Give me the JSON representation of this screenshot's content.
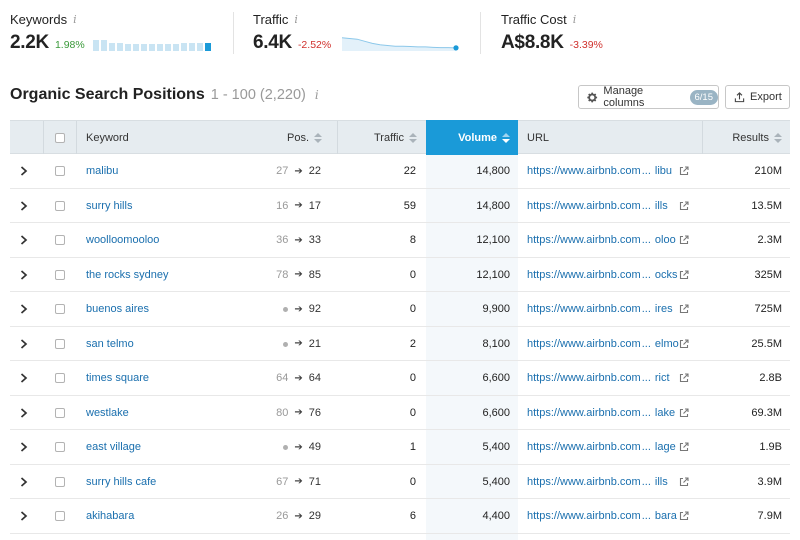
{
  "metrics": {
    "keywords": {
      "label": "Keywords",
      "info": "i",
      "value": "2.2K",
      "delta": "1.98%",
      "trend": [
        0.85,
        0.85,
        0.6,
        0.6,
        0.55,
        0.5,
        0.5,
        0.5,
        0.55,
        0.55,
        0.55,
        0.6,
        0.6,
        0.6,
        0.6
      ]
    },
    "traffic": {
      "label": "Traffic",
      "info": "i",
      "value": "6.4K",
      "delta": "-2.52%",
      "trend": [
        0.8,
        0.75,
        0.7,
        0.55,
        0.4,
        0.3,
        0.25,
        0.2,
        0.2,
        0.18,
        0.15,
        0.15,
        0.12,
        0.1,
        0.1,
        0.08
      ]
    },
    "traffic_cost": {
      "label": "Traffic Cost",
      "info": "i",
      "value": "A$8.8K",
      "delta": "-3.39%"
    }
  },
  "heading": {
    "title": "Organic Search Positions",
    "range": "1 - 100 (2,220)",
    "info": "i"
  },
  "toolbar": {
    "manage_label": "Manage columns",
    "manage_badge": "6/15",
    "export_label": "Export"
  },
  "columns": {
    "keyword": "Keyword",
    "pos": "Pos.",
    "traffic": "Traffic",
    "volume": "Volume",
    "url": "URL",
    "results": "Results"
  },
  "rows": [
    {
      "keyword": "malibu",
      "prev": "27",
      "prev_dot": false,
      "pos": "22",
      "traffic": "22",
      "volume": "14,800",
      "url": "https://www.airbnb.com",
      "url_tail": "libu",
      "results": "210M"
    },
    {
      "keyword": "surry hills",
      "prev": "16",
      "prev_dot": false,
      "pos": "17",
      "traffic": "59",
      "volume": "14,800",
      "url": "https://www.airbnb.com",
      "url_tail": "ills",
      "results": "13.5M"
    },
    {
      "keyword": "woolloomooloo",
      "prev": "36",
      "prev_dot": false,
      "pos": "33",
      "traffic": "8",
      "volume": "12,100",
      "url": "https://www.airbnb.com",
      "url_tail": "oloo",
      "results": "2.3M"
    },
    {
      "keyword": "the rocks sydney",
      "prev": "78",
      "prev_dot": false,
      "pos": "85",
      "traffic": "0",
      "volume": "12,100",
      "url": "https://www.airbnb.com",
      "url_tail": "ocks",
      "results": "325M"
    },
    {
      "keyword": "buenos aires",
      "prev": "",
      "prev_dot": true,
      "pos": "92",
      "traffic": "0",
      "volume": "9,900",
      "url": "https://www.airbnb.com",
      "url_tail": "ires",
      "results": "725M"
    },
    {
      "keyword": "san telmo",
      "prev": "",
      "prev_dot": true,
      "pos": "21",
      "traffic": "2",
      "volume": "8,100",
      "url": "https://www.airbnb.com",
      "url_tail": "elmo",
      "results": "25.5M"
    },
    {
      "keyword": "times square",
      "prev": "64",
      "prev_dot": false,
      "pos": "64",
      "traffic": "0",
      "volume": "6,600",
      "url": "https://www.airbnb.com",
      "url_tail": "rict",
      "results": "2.8B"
    },
    {
      "keyword": "westlake",
      "prev": "80",
      "prev_dot": false,
      "pos": "76",
      "traffic": "0",
      "volume": "6,600",
      "url": "https://www.airbnb.com",
      "url_tail": "lake",
      "results": "69.3M"
    },
    {
      "keyword": "east village",
      "prev": "",
      "prev_dot": true,
      "pos": "49",
      "traffic": "1",
      "volume": "5,400",
      "url": "https://www.airbnb.com",
      "url_tail": "lage",
      "results": "1.9B"
    },
    {
      "keyword": "surry hills cafe",
      "prev": "67",
      "prev_dot": false,
      "pos": "71",
      "traffic": "0",
      "volume": "5,400",
      "url": "https://www.airbnb.com",
      "url_tail": "ills",
      "results": "3.9M"
    },
    {
      "keyword": "akihabara",
      "prev": "26",
      "prev_dot": false,
      "pos": "29",
      "traffic": "6",
      "volume": "4,400",
      "url": "https://www.airbnb.com",
      "url_tail": "bara",
      "results": "7.9M"
    }
  ],
  "colors": {
    "accent": "#1a9ad8",
    "link": "#1a6fae",
    "positive": "#3a9a3a",
    "negative": "#d0312d"
  }
}
